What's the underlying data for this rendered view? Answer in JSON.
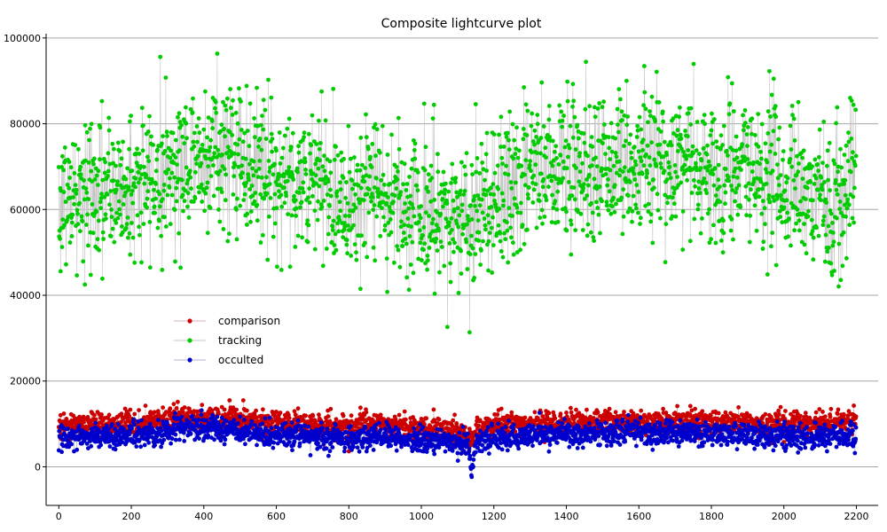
{
  "chart_data": {
    "type": "scatter",
    "title": "Composite lightcurve plot",
    "xlabel": "",
    "ylabel": "",
    "xlim": [
      -35,
      2260
    ],
    "ylim": [
      -9000,
      101000
    ],
    "x_ticks": [
      0,
      200,
      400,
      600,
      800,
      1000,
      1200,
      1400,
      1600,
      1800,
      2000,
      2200
    ],
    "y_ticks": [
      0,
      20000,
      40000,
      60000,
      80000,
      100000
    ],
    "grid": "horizontal",
    "legend_position": "left-middle",
    "n_points": 2200,
    "series": [
      {
        "name": "comparison",
        "color": "#cc0000",
        "line_color": "#d9b3b3",
        "mean": 10000,
        "spread": 1400,
        "profile": [
          [
            0,
            9600
          ],
          [
            200,
            10200
          ],
          [
            340,
            11600
          ],
          [
            460,
            11200
          ],
          [
            560,
            10500
          ],
          [
            700,
            10000
          ],
          [
            800,
            9400
          ],
          [
            900,
            9700
          ],
          [
            1000,
            9200
          ],
          [
            1080,
            8600
          ],
          [
            1140,
            8600
          ],
          [
            1200,
            9900
          ],
          [
            1400,
            10400
          ],
          [
            1600,
            10600
          ],
          [
            1800,
            10400
          ],
          [
            2000,
            10000
          ],
          [
            2200,
            10300
          ]
        ],
        "dips": [
          [
            1130,
            -1800,
            25
          ]
        ]
      },
      {
        "name": "tracking",
        "color": "#00cc00",
        "line_color": "#c6c6c6",
        "mean": 67000,
        "spread": 8500,
        "profile": [
          [
            0,
            62000
          ],
          [
            200,
            65000
          ],
          [
            350,
            71000
          ],
          [
            460,
            74000
          ],
          [
            560,
            69000
          ],
          [
            700,
            66000
          ],
          [
            800,
            63000
          ],
          [
            900,
            64000
          ],
          [
            1000,
            60000
          ],
          [
            1080,
            57000
          ],
          [
            1150,
            60000
          ],
          [
            1250,
            65000
          ],
          [
            1350,
            71000
          ],
          [
            1500,
            70000
          ],
          [
            1650,
            72000
          ],
          [
            1800,
            69000
          ],
          [
            1950,
            68000
          ],
          [
            2080,
            61000
          ],
          [
            2200,
            68000
          ]
        ],
        "dips": []
      },
      {
        "name": "occulted",
        "color": "#0000cc",
        "line_color": "#b3b3d9",
        "mean": 7400,
        "spread": 1400,
        "profile": [
          [
            0,
            7000
          ],
          [
            200,
            7400
          ],
          [
            340,
            8800
          ],
          [
            460,
            8700
          ],
          [
            560,
            7900
          ],
          [
            700,
            7300
          ],
          [
            800,
            6600
          ],
          [
            900,
            6900
          ],
          [
            1000,
            6200
          ],
          [
            1080,
            5600
          ],
          [
            1140,
            5400
          ],
          [
            1200,
            7000
          ],
          [
            1400,
            7600
          ],
          [
            1600,
            7900
          ],
          [
            1800,
            7600
          ],
          [
            2000,
            7200
          ],
          [
            2200,
            7300
          ]
        ],
        "dips": [
          [
            1140,
            -7000,
            6
          ]
        ]
      }
    ]
  }
}
